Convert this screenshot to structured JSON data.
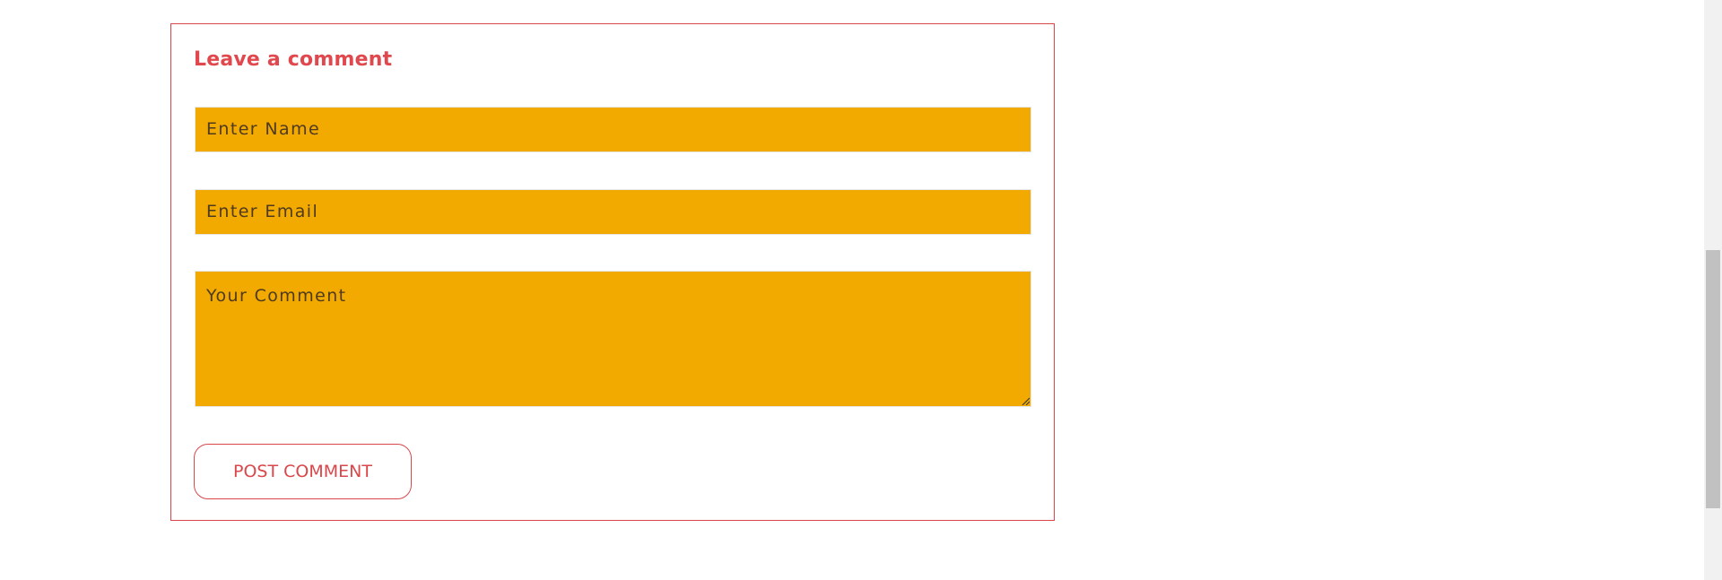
{
  "comment_form": {
    "title": "Leave a comment",
    "name_placeholder": "Enter Name",
    "email_placeholder": "Enter Email",
    "comment_placeholder": "Your Comment",
    "submit_label": "POST COMMENT"
  },
  "colors": {
    "accent": "#d9474b",
    "input_background": "#f2a900",
    "page_background": "#ffffff"
  }
}
